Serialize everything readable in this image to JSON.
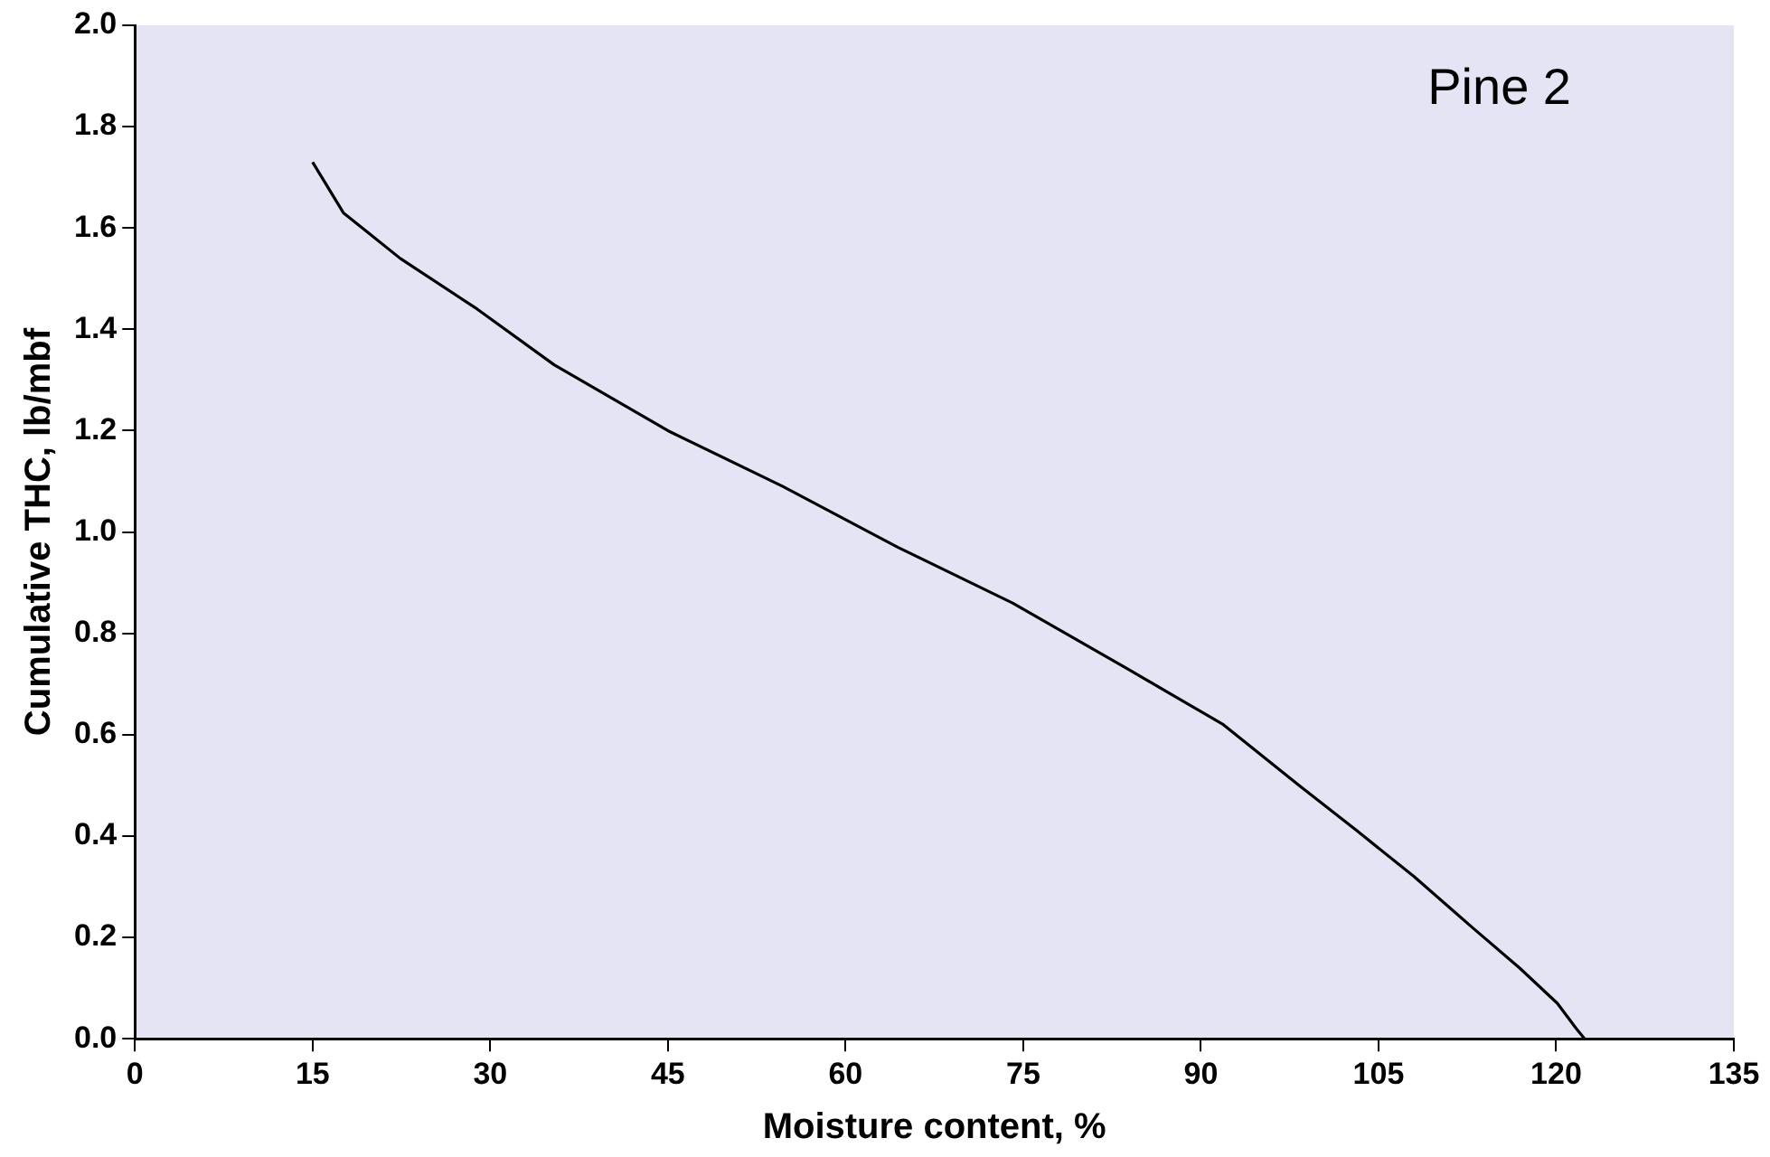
{
  "chart_data": {
    "type": "line",
    "xlabel": "Moisture content, %",
    "ylabel": "Cumulative THC, lb/mbf",
    "annotations": [
      "Pine 2"
    ],
    "x": [
      15,
      17.6,
      22.4,
      28.9,
      35.4,
      45,
      54.7,
      64.4,
      74.1,
      83.8,
      91.9,
      98.3,
      103.2,
      108,
      112.9,
      116.9,
      120.1,
      121.7,
      122.4
    ],
    "series": [
      {
        "color": "#000000",
        "values": [
          1.73,
          1.63,
          1.54,
          1.44,
          1.33,
          1.2,
          1.09,
          0.97,
          0.86,
          0.73,
          0.62,
          0.5,
          0.41,
          0.32,
          0.22,
          0.14,
          0.07,
          0.02,
          0
        ]
      }
    ],
    "xlim": [
      0,
      135
    ],
    "xticks": [
      0,
      15,
      30,
      45,
      60,
      75,
      90,
      105,
      120,
      135
    ],
    "ylim": [
      0,
      2
    ],
    "yticks": [
      {
        "value": 0,
        "label": "0.0"
      },
      {
        "value": 0.2,
        "label": "0.2"
      },
      {
        "value": 0.4,
        "label": "0.4"
      },
      {
        "value": 0.6,
        "label": "0.6"
      },
      {
        "value": 0.8,
        "label": "0.8"
      },
      {
        "value": 1,
        "label": "1.0"
      },
      {
        "value": 1.2,
        "label": "1.2"
      },
      {
        "value": 1.4,
        "label": "1.4"
      },
      {
        "value": 1.6,
        "label": "1.6"
      },
      {
        "value": 1.8,
        "label": "1.8"
      },
      {
        "value": 2,
        "label": "2.0"
      }
    ],
    "grid": false,
    "legend": false,
    "marker": "none",
    "line_style": "solid"
  }
}
